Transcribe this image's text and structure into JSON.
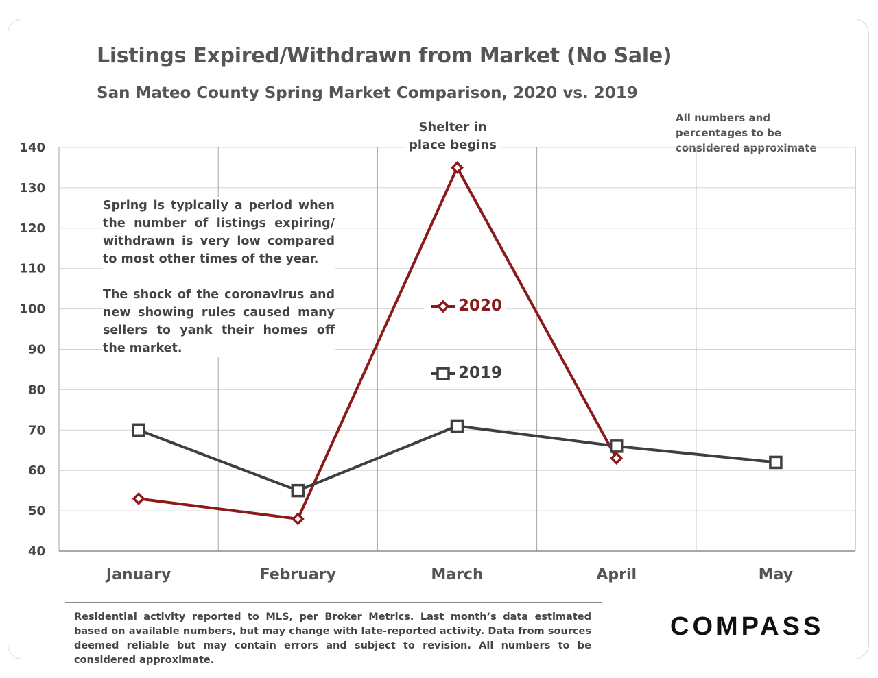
{
  "title": "Listings Expired/Withdrawn from Market (No Sale)",
  "subtitle": "San Mateo County Spring Market Comparison, 2020 vs. 2019",
  "approx_note": "All numbers and percentages to be considered approximate",
  "shelter_note": "Shelter in place  begins",
  "annotation": {
    "p1": "Spring is typically a period when the number of listings expiring/ withdrawn is very low compared to most other times of the year.",
    "p2": "The shock of the coronavirus and new showing rules caused many sellers to yank their homes off the market."
  },
  "footer": "Residential activity reported to MLS, per Broker Metrics. Last month’s data estimated based on available numbers, but may change with late-reported activity. Data from sources deemed reliable but may contain errors and subject to revision. All numbers to be considered approximate.",
  "logo": "COMPASS",
  "chart_data": {
    "type": "line",
    "title": "Listings Expired/Withdrawn from Market (No Sale)",
    "categories": [
      "January",
      "February",
      "March",
      "April",
      "May"
    ],
    "ylim": [
      40,
      140
    ],
    "yticks": [
      40,
      50,
      60,
      70,
      80,
      90,
      100,
      110,
      120,
      130,
      140
    ],
    "grid": true,
    "legend": "center",
    "series": [
      {
        "name": "2020",
        "color": "#8b1a1a",
        "marker": "diamond",
        "values": [
          53,
          48,
          135,
          63,
          null
        ]
      },
      {
        "name": "2019",
        "color": "#3f3f3f",
        "marker": "square",
        "values": [
          70,
          55,
          71,
          66,
          62
        ]
      }
    ]
  }
}
